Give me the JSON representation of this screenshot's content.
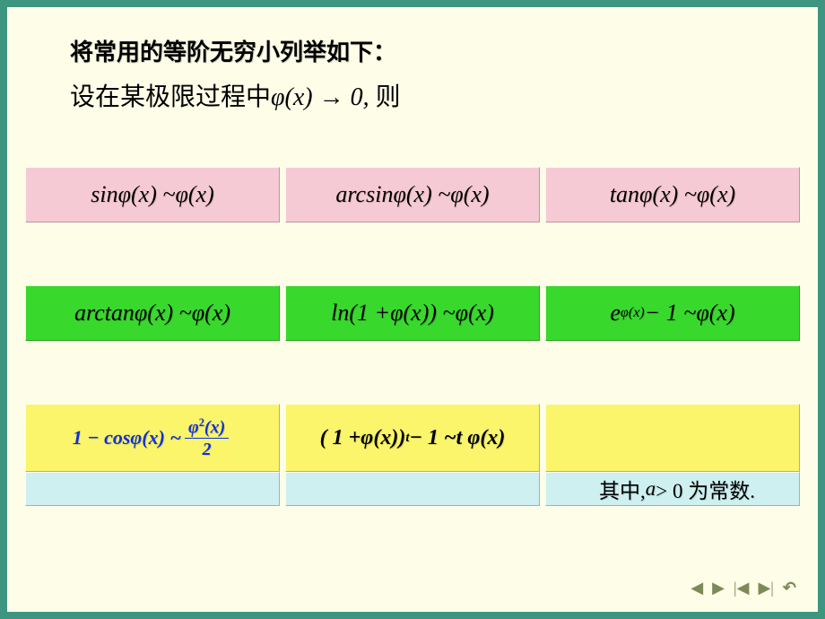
{
  "colors": {
    "page_bg": "#3e9680",
    "slide_bg": "#fdfde8",
    "pink": "#f6cad4",
    "green": "#39d82d",
    "yellow": "#faf56a",
    "cyan": "#cef0f1",
    "accent_blue": "#1030d8",
    "nav_color": "#7d8a58"
  },
  "heading": "将常用的等阶无穷小列举如下：",
  "intro": {
    "prefix": "设在某极限过程中",
    "expr": "φ(x) → 0,",
    "suffix": " 则"
  },
  "rows": [
    {
      "style": "pink",
      "cells": [
        "sin φ(x) ~ φ(x)",
        "arcsin φ(x) ~ φ(x)",
        "tan φ(x) ~ φ(x)"
      ]
    },
    {
      "style": "green",
      "cells": [
        "arctan φ(x) ~ φ(x)",
        "ln(1 + φ(x)) ~ φ(x)",
        "e^{φ(x)} − 1 ~ φ(x)"
      ]
    },
    {
      "style": "yellow",
      "cells": [
        "1 − cos φ(x) ~ φ²(x)/2",
        "(1 + φ(x))^t − 1 ~ t φ(x)",
        ""
      ]
    },
    {
      "style": "cyan",
      "cells": [
        "",
        "",
        "其中, a > 0 为常数."
      ]
    }
  ],
  "nav": {
    "prev": "◀",
    "next": "▶",
    "first": "|◀",
    "last": "▶|",
    "return": "↶"
  }
}
